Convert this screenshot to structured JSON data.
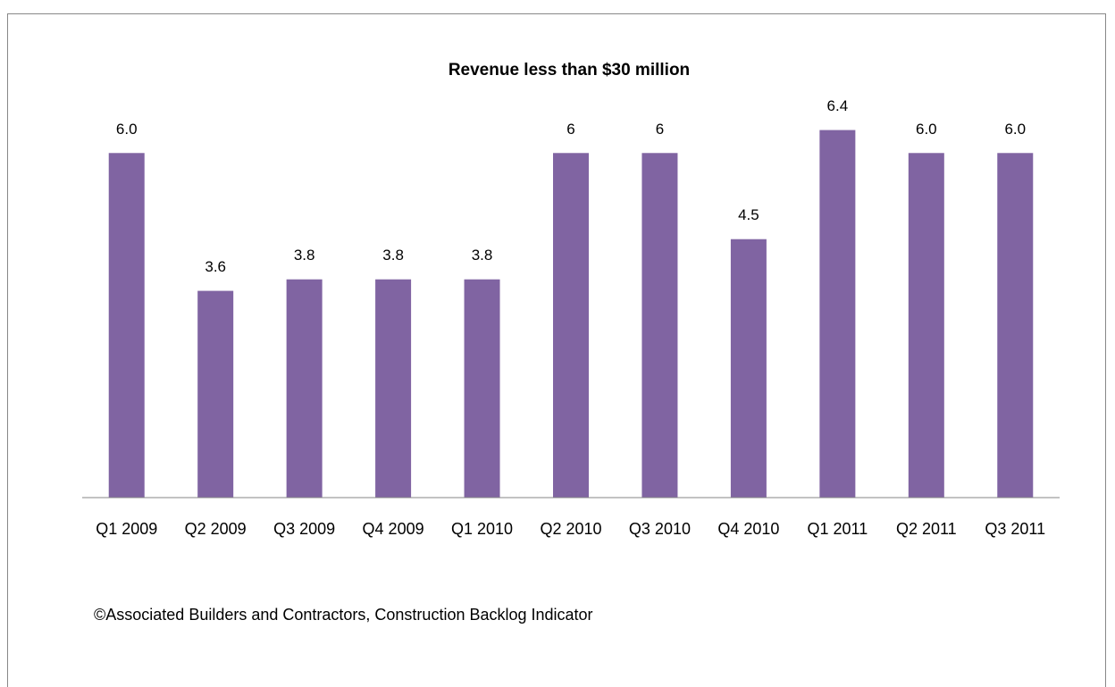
{
  "chart_data": {
    "type": "bar",
    "title": "Revenue less than $30 million",
    "categories": [
      "Q1 2009",
      "Q2 2009",
      "Q3 2009",
      "Q4 2009",
      "Q1 2010",
      "Q2 2010",
      "Q3 2010",
      "Q4 2010",
      "Q1 2011",
      "Q2 2011",
      "Q3 2011"
    ],
    "values": [
      6.0,
      3.6,
      3.8,
      3.8,
      3.8,
      6,
      6,
      4.5,
      6.4,
      6.0,
      6.0
    ],
    "value_labels": [
      "6.0",
      "3.6",
      "3.8",
      "3.8",
      "3.8",
      "6",
      "6",
      "4.5",
      "6.4",
      "6.0",
      "6.0"
    ],
    "color": "#8064a2",
    "ylim": [
      0,
      7
    ],
    "source": "©Associated Builders and Contractors, Construction Backlog Indicator"
  }
}
